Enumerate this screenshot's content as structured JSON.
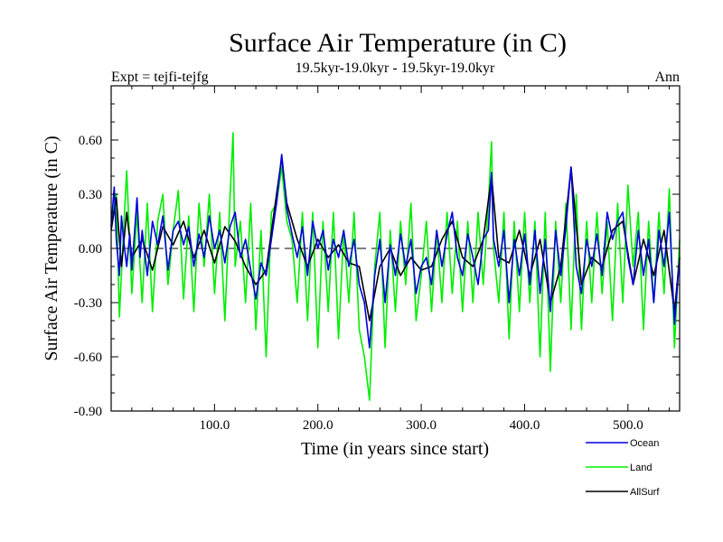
{
  "chart_data": {
    "type": "line",
    "title": "Surface Air Temperature (in C)",
    "subtitle": "19.5kyr-19.0kyr - 19.5kyr-19.0kyr",
    "left_note": "Expt = tejfi-tejfg",
    "right_note": "Ann",
    "xlabel": "Time (in years since start)",
    "ylabel": "Surface Air Temperature (in C)",
    "xlim": [
      0,
      550
    ],
    "ylim": [
      -0.9,
      0.9
    ],
    "xticks": [
      100,
      200,
      300,
      400,
      500
    ],
    "xtick_labels": [
      "100.0",
      "200.0",
      "300.0",
      "400.0",
      "500.0"
    ],
    "yticks": [
      0.6,
      0.3,
      0.0,
      -0.3,
      -0.6,
      -0.9
    ],
    "ytick_labels": [
      "0.60",
      "0.30",
      "0.00",
      "-0.30",
      "-0.60",
      "-0.90"
    ],
    "zero_line": true,
    "series": [
      {
        "name": "Land",
        "color": "#00ee00",
        "x": [
          0,
          5,
          8,
          12,
          15,
          20,
          25,
          30,
          35,
          40,
          45,
          50,
          55,
          60,
          65,
          70,
          75,
          80,
          85,
          90,
          95,
          100,
          105,
          110,
          115,
          118,
          120,
          125,
          130,
          135,
          140,
          145,
          150,
          155,
          160,
          165,
          170,
          175,
          180,
          185,
          190,
          195,
          200,
          205,
          210,
          215,
          220,
          225,
          230,
          235,
          240,
          245,
          250,
          255,
          260,
          265,
          270,
          275,
          280,
          285,
          290,
          295,
          300,
          305,
          310,
          315,
          320,
          325,
          330,
          335,
          340,
          345,
          350,
          355,
          360,
          365,
          368,
          370,
          375,
          380,
          385,
          390,
          395,
          400,
          405,
          410,
          415,
          420,
          425,
          430,
          435,
          440,
          445,
          450,
          455,
          460,
          465,
          470,
          475,
          480,
          485,
          490,
          495,
          500,
          505,
          510,
          515,
          520,
          525,
          530,
          535,
          540,
          545,
          550
        ],
        "y": [
          0.15,
          0.3,
          -0.38,
          0.1,
          0.43,
          -0.25,
          0.2,
          -0.3,
          0.25,
          -0.35,
          0.15,
          0.3,
          -0.2,
          0.1,
          0.32,
          -0.28,
          0.18,
          -0.35,
          0.25,
          -0.1,
          0.3,
          -0.25,
          0.2,
          -0.4,
          0.28,
          0.64,
          -0.1,
          0.15,
          -0.3,
          0.25,
          -0.45,
          0.1,
          -0.6,
          0.2,
          0.25,
          0.45,
          0.15,
          0.05,
          -0.3,
          0.2,
          -0.4,
          0.2,
          -0.55,
          0.15,
          -0.35,
          0.2,
          -0.5,
          0.1,
          -0.3,
          0.2,
          -0.45,
          -0.6,
          -0.84,
          -0.1,
          0.2,
          -0.55,
          0.1,
          -0.35,
          0.15,
          -0.2,
          0.25,
          -0.4,
          -0.15,
          0.15,
          -0.35,
          0.1,
          -0.3,
          0.2,
          -0.25,
          0.15,
          -0.35,
          0.15,
          -0.3,
          0.2,
          -0.2,
          0.25,
          0.59,
          0.0,
          -0.3,
          0.2,
          -0.5,
          0.15,
          -0.35,
          0.2,
          -0.3,
          0.15,
          -0.6,
          0.2,
          -0.68,
          0.15,
          -0.3,
          0.25,
          -0.45,
          0.3,
          -0.45,
          0.15,
          -0.3,
          0.2,
          -0.25,
          0.15,
          -0.4,
          0.25,
          -0.3,
          0.35,
          -0.1,
          0.2,
          -0.45,
          0.15,
          -0.3,
          0.2,
          -0.25,
          0.33,
          -0.55,
          0.05
        ]
      },
      {
        "name": "AllSurf",
        "color": "#000000",
        "x": [
          0,
          5,
          10,
          15,
          20,
          30,
          40,
          50,
          60,
          70,
          80,
          90,
          100,
          110,
          120,
          130,
          140,
          150,
          160,
          165,
          170,
          180,
          190,
          200,
          210,
          220,
          230,
          240,
          250,
          260,
          270,
          280,
          290,
          300,
          310,
          320,
          330,
          340,
          350,
          360,
          368,
          375,
          385,
          395,
          405,
          415,
          425,
          435,
          445,
          455,
          465,
          475,
          485,
          495,
          505,
          515,
          525,
          535,
          545,
          550
        ],
        "y": [
          0.1,
          0.28,
          -0.1,
          0.2,
          -0.05,
          0.05,
          -0.12,
          0.12,
          0.02,
          0.15,
          -0.05,
          0.1,
          -0.08,
          0.12,
          0.04,
          -0.1,
          -0.2,
          -0.12,
          0.3,
          0.5,
          0.25,
          0.05,
          -0.1,
          0.05,
          -0.05,
          0.02,
          -0.08,
          -0.1,
          -0.4,
          -0.1,
          0.0,
          -0.15,
          -0.05,
          -0.12,
          -0.1,
          0.05,
          0.15,
          -0.05,
          -0.1,
          0.05,
          0.4,
          -0.05,
          -0.08,
          0.1,
          -0.15,
          0.05,
          -0.3,
          -0.1,
          0.45,
          -0.2,
          -0.05,
          -0.1,
          0.1,
          0.15,
          -0.2,
          0.05,
          -0.15,
          0.1,
          -0.35,
          -0.05
        ]
      },
      {
        "name": "Ocean",
        "color": "#0000dd",
        "x": [
          0,
          3,
          5,
          8,
          10,
          12,
          15,
          18,
          20,
          25,
          28,
          30,
          35,
          40,
          45,
          50,
          55,
          60,
          65,
          70,
          75,
          80,
          85,
          90,
          95,
          100,
          105,
          110,
          115,
          120,
          125,
          130,
          135,
          140,
          145,
          150,
          155,
          160,
          165,
          168,
          170,
          175,
          180,
          185,
          190,
          195,
          200,
          205,
          210,
          215,
          220,
          225,
          230,
          235,
          240,
          245,
          250,
          255,
          260,
          265,
          270,
          275,
          280,
          285,
          290,
          295,
          300,
          305,
          310,
          315,
          320,
          325,
          330,
          335,
          340,
          345,
          350,
          355,
          360,
          365,
          368,
          370,
          375,
          380,
          385,
          390,
          395,
          400,
          405,
          410,
          415,
          420,
          425,
          430,
          435,
          440,
          445,
          450,
          455,
          460,
          465,
          470,
          475,
          480,
          485,
          490,
          495,
          500,
          505,
          510,
          515,
          520,
          525,
          530,
          535,
          540,
          545,
          550
        ],
        "y": [
          0.12,
          0.34,
          0.05,
          -0.15,
          0.18,
          0.05,
          -0.1,
          0.08,
          -0.12,
          0.28,
          -0.05,
          0.1,
          -0.15,
          0.15,
          0.02,
          0.18,
          -0.12,
          0.1,
          0.15,
          0.02,
          0.12,
          -0.1,
          0.08,
          -0.05,
          0.18,
          0.0,
          0.1,
          -0.08,
          0.12,
          0.2,
          -0.05,
          0.05,
          -0.12,
          -0.28,
          -0.08,
          -0.15,
          0.05,
          0.25,
          0.52,
          0.35,
          0.22,
          0.08,
          -0.05,
          0.12,
          -0.15,
          0.15,
          0.0,
          0.1,
          -0.12,
          0.05,
          -0.05,
          0.1,
          -0.1,
          0.05,
          -0.2,
          -0.3,
          -0.55,
          -0.15,
          0.05,
          -0.3,
          0.02,
          -0.15,
          0.08,
          -0.1,
          0.05,
          -0.25,
          -0.1,
          -0.05,
          -0.2,
          0.1,
          -0.1,
          0.08,
          0.2,
          -0.05,
          -0.15,
          0.08,
          -0.05,
          -0.2,
          0.05,
          0.1,
          0.42,
          0.05,
          -0.1,
          0.1,
          -0.3,
          0.05,
          -0.15,
          0.08,
          -0.2,
          0.1,
          -0.25,
          0.05,
          -0.35,
          0.1,
          -0.15,
          0.12,
          0.45,
          -0.1,
          -0.25,
          0.05,
          -0.1,
          0.08,
          -0.15,
          0.2,
          0.05,
          0.15,
          0.2,
          -0.05,
          -0.2,
          0.1,
          -0.15,
          0.05,
          -0.3,
          0.1,
          -0.1,
          0.2,
          -0.42,
          -0.05
        ]
      }
    ],
    "legend": [
      {
        "name": "Ocean",
        "color": "#0000dd"
      },
      {
        "name": "Land",
        "color": "#00ee00"
      },
      {
        "name": "AllSurf",
        "color": "#000000"
      }
    ],
    "legend_position": "bottom-right"
  }
}
